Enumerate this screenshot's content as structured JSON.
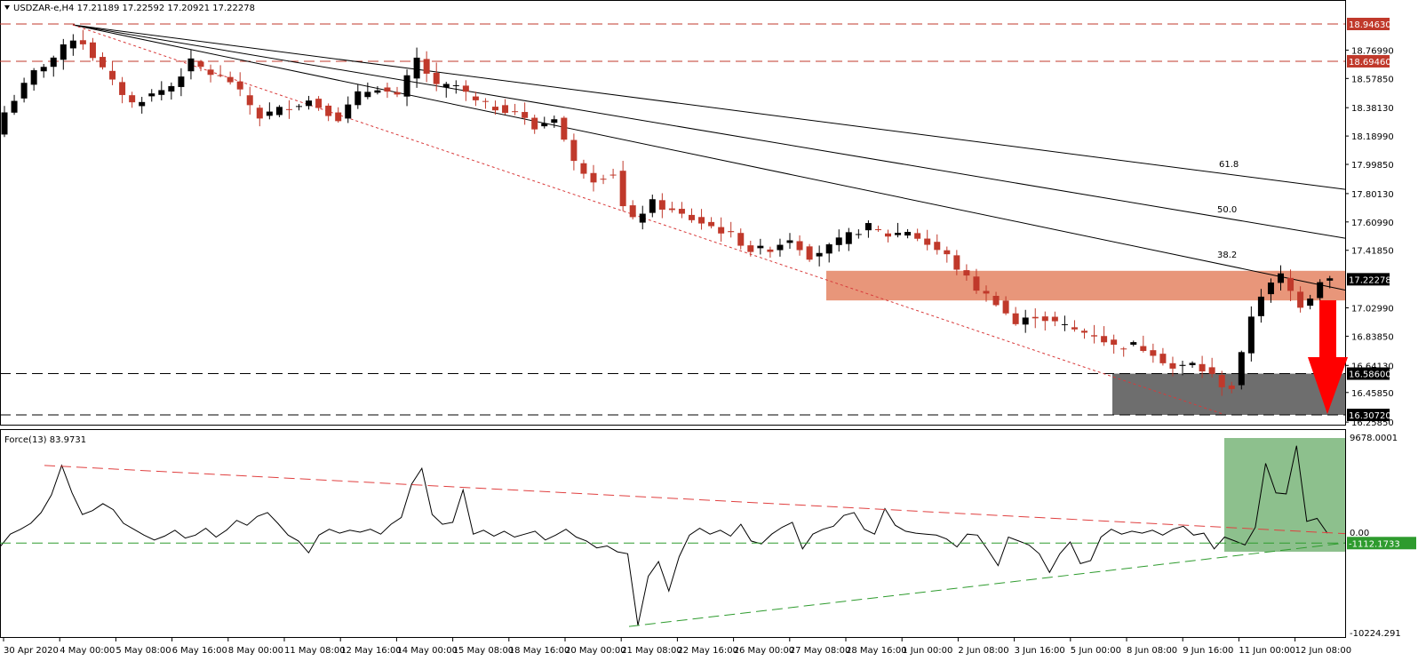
{
  "header": {
    "symbol_line": "USDZAR-e,H4  17.21189 17.22592 17.20921 17.22278",
    "force_title": "Force(13) 83.9731"
  },
  "colors": {
    "bull": "#000000",
    "bear": "#c0392b",
    "resistance_zone": "#e8967a",
    "support_zone": "#6e6e6e",
    "force_zone": "#8dc08d",
    "arrow": "#ff0000",
    "hline": "#c0392b",
    "green_line": "#2e9b2e"
  },
  "chart_data": [
    {
      "type": "candlestick",
      "title": "USDZAR-e,H4",
      "ylim": [
        16.2585,
        18.9463
      ],
      "x_labels": [
        "30 Apr 2020",
        "4 May 00:00",
        "5 May 08:00",
        "6 May 16:00",
        "8 May 00:00",
        "11 May 08:00",
        "12 May 16:00",
        "14 May 00:00",
        "15 May 08:00",
        "18 May 16:00",
        "20 May 00:00",
        "21 May 08:00",
        "22 May 16:00",
        "26 May 00:00",
        "27 May 08:00",
        "28 May 16:00",
        "1 Jun 00:00",
        "2 Jun 08:00",
        "3 Jun 16:00",
        "5 Jun 00:00",
        "8 Jun 08:00",
        "9 Jun 16:00",
        "11 Jun 00:00",
        "12 Jun 08:00"
      ],
      "y_ticks": [
        "18.94630",
        "18.76990",
        "18.69460",
        "18.57850",
        "18.38130",
        "18.18990",
        "17.99850",
        "17.80130",
        "17.60990",
        "17.41850",
        "17.22278",
        "17.02990",
        "16.83850",
        "16.64130",
        "16.58600",
        "16.45850",
        "16.30720",
        "16.25850"
      ],
      "horizontal_levels": [
        {
          "label": "18.94630",
          "value": 18.9463
        },
        {
          "label": "18.69460",
          "value": 18.6946
        },
        {
          "label": "16.58600",
          "value": 16.586
        },
        {
          "label": "16.30720",
          "value": 16.3072
        }
      ],
      "last_price": {
        "label": "17.22278",
        "value": 17.22278
      },
      "fib_labels": [
        "61.8",
        "50.0",
        "38.2"
      ],
      "resistance_zone": [
        17.08,
        17.28
      ],
      "support_zone": [
        16.3072,
        16.586
      ],
      "close_path": [
        [
          0,
          18.35
        ],
        [
          3,
          18.62
        ],
        [
          5,
          18.72
        ],
        [
          7,
          18.85
        ],
        [
          8,
          18.82
        ],
        [
          11,
          18.55
        ],
        [
          13,
          18.41
        ],
        [
          15,
          18.47
        ],
        [
          17,
          18.53
        ],
        [
          19,
          18.69
        ],
        [
          21,
          18.61
        ],
        [
          23,
          18.56
        ],
        [
          26,
          18.32
        ],
        [
          28,
          18.37
        ],
        [
          31,
          18.43
        ],
        [
          34,
          18.31
        ],
        [
          36,
          18.47
        ],
        [
          38,
          18.52
        ],
        [
          40,
          18.45
        ],
        [
          42,
          18.71
        ],
        [
          44,
          18.52
        ],
        [
          46,
          18.53
        ],
        [
          48,
          18.42
        ],
        [
          50,
          18.38
        ],
        [
          52,
          18.36
        ],
        [
          54,
          18.24
        ],
        [
          56,
          18.32
        ],
        [
          58,
          18.01
        ],
        [
          60,
          17.9
        ],
        [
          62,
          17.94
        ],
        [
          63,
          17.71
        ],
        [
          64,
          17.62
        ],
        [
          66,
          17.74
        ],
        [
          68,
          17.68
        ],
        [
          70,
          17.63
        ],
        [
          72,
          17.58
        ],
        [
          74,
          17.52
        ],
        [
          76,
          17.42
        ],
        [
          78,
          17.43
        ],
        [
          80,
          17.5
        ],
        [
          82,
          17.38
        ],
        [
          84,
          17.44
        ],
        [
          86,
          17.52
        ],
        [
          88,
          17.58
        ],
        [
          90,
          17.52
        ],
        [
          92,
          17.55
        ],
        [
          94,
          17.46
        ],
        [
          96,
          17.38
        ],
        [
          97,
          17.3
        ],
        [
          99,
          17.16
        ],
        [
          101,
          17.07
        ],
        [
          103,
          16.92
        ],
        [
          105,
          16.98
        ],
        [
          107,
          16.93
        ],
        [
          109,
          16.88
        ],
        [
          111,
          16.85
        ],
        [
          113,
          16.77
        ],
        [
          115,
          16.78
        ],
        [
          117,
          16.73
        ],
        [
          119,
          16.62
        ],
        [
          121,
          16.65
        ],
        [
          123,
          16.57
        ],
        [
          124,
          16.51
        ],
        [
          125,
          16.49
        ],
        [
          126,
          16.71
        ],
        [
          127,
          16.98
        ],
        [
          128,
          17.12
        ],
        [
          130,
          17.25
        ],
        [
          131,
          17.14
        ],
        [
          132,
          17.05
        ],
        [
          133,
          17.11
        ],
        [
          134,
          17.22
        ],
        [
          135,
          17.23
        ]
      ]
    },
    {
      "type": "line",
      "title": "Force(13) 83.9731",
      "ylim": [
        -10224.291,
        9678.0001
      ],
      "y_ticks": [
        "9678.0001",
        "0.00",
        "-1112.1733",
        "-10224.291"
      ],
      "zero_label": "0.00",
      "support_label": "-1112.1733",
      "values": [
        -1500,
        -200,
        300,
        900,
        2000,
        3800,
        6800,
        4000,
        1800,
        2200,
        2900,
        2300,
        900,
        300,
        -300,
        -800,
        -400,
        200,
        -600,
        -300,
        400,
        -500,
        200,
        1200,
        700,
        1600,
        2000,
        900,
        -300,
        -900,
        -2100,
        -300,
        300,
        -100,
        200,
        0,
        300,
        -200,
        800,
        1500,
        4900,
        6500,
        1800,
        800,
        1000,
        4300,
        -200,
        200,
        -400,
        100,
        -500,
        -200,
        100,
        -800,
        -300,
        300,
        -500,
        -900,
        -1600,
        -1400,
        -2000,
        -2200,
        -9500,
        -4500,
        -3000,
        -6000,
        -2500,
        -300,
        400,
        -200,
        200,
        -400,
        800,
        -900,
        -1200,
        -200,
        500,
        1000,
        -1700,
        -200,
        300,
        600,
        1700,
        2000,
        300,
        -200,
        2400,
        700,
        100,
        -100,
        -200,
        -300,
        -700,
        -1500,
        -200,
        -300,
        -1800,
        -3400,
        -500,
        -900,
        -1300,
        -2200,
        -4100,
        -2200,
        -1000,
        -3200,
        -2900,
        -500,
        300,
        -200,
        100,
        -100,
        200,
        -300,
        300,
        600,
        -300,
        -100,
        -1700,
        -500,
        -900,
        -1300,
        500,
        7000,
        4000,
        3900,
        8800,
        1100,
        1400,
        -100
      ]
    }
  ]
}
